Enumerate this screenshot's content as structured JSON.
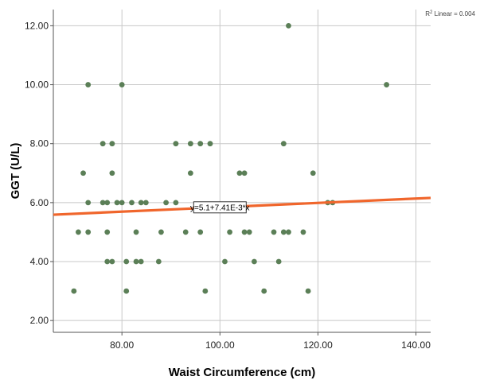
{
  "chart_data": {
    "type": "scatter",
    "xlabel": "Waist Circumference (cm)",
    "ylabel": "GGT (U/L)",
    "xlim": [
      66,
      143
    ],
    "ylim": [
      1.6,
      12.55
    ],
    "xticks": [
      80,
      100,
      120,
      140
    ],
    "xtick_labels": [
      "80.00",
      "100.00",
      "120.00",
      "140.00"
    ],
    "yticks": [
      2,
      4,
      6,
      8,
      10,
      12
    ],
    "ytick_labels": [
      "2.00",
      "4.00",
      "6.00",
      "8.00",
      "10.00",
      "12.00"
    ],
    "grid": true,
    "points": [
      {
        "x": 70.2,
        "y": 3
      },
      {
        "x": 71.1,
        "y": 5
      },
      {
        "x": 72.1,
        "y": 7
      },
      {
        "x": 73.1,
        "y": 10
      },
      {
        "x": 73.1,
        "y": 6
      },
      {
        "x": 73.1,
        "y": 5
      },
      {
        "x": 76.1,
        "y": 8
      },
      {
        "x": 76.1,
        "y": 6
      },
      {
        "x": 77.0,
        "y": 6
      },
      {
        "x": 77.0,
        "y": 5
      },
      {
        "x": 77.0,
        "y": 4
      },
      {
        "x": 78.0,
        "y": 8
      },
      {
        "x": 78.0,
        "y": 7
      },
      {
        "x": 78.0,
        "y": 4
      },
      {
        "x": 79.0,
        "y": 6
      },
      {
        "x": 80.0,
        "y": 10
      },
      {
        "x": 80.0,
        "y": 6
      },
      {
        "x": 80.9,
        "y": 4
      },
      {
        "x": 80.9,
        "y": 3
      },
      {
        "x": 82.0,
        "y": 6
      },
      {
        "x": 82.9,
        "y": 5
      },
      {
        "x": 82.9,
        "y": 4
      },
      {
        "x": 83.9,
        "y": 6
      },
      {
        "x": 83.9,
        "y": 4
      },
      {
        "x": 84.9,
        "y": 6
      },
      {
        "x": 87.5,
        "y": 4
      },
      {
        "x": 88.0,
        "y": 5
      },
      {
        "x": 89.0,
        "y": 6
      },
      {
        "x": 91.0,
        "y": 8
      },
      {
        "x": 91.0,
        "y": 6
      },
      {
        "x": 93.0,
        "y": 5
      },
      {
        "x": 94.0,
        "y": 8
      },
      {
        "x": 94.0,
        "y": 7
      },
      {
        "x": 96.0,
        "y": 8
      },
      {
        "x": 96.0,
        "y": 5
      },
      {
        "x": 97.0,
        "y": 3
      },
      {
        "x": 98.0,
        "y": 8
      },
      {
        "x": 101.0,
        "y": 4
      },
      {
        "x": 102.0,
        "y": 5
      },
      {
        "x": 104.0,
        "y": 7
      },
      {
        "x": 105.0,
        "y": 7
      },
      {
        "x": 105.0,
        "y": 5
      },
      {
        "x": 106.0,
        "y": 5
      },
      {
        "x": 107.0,
        "y": 4
      },
      {
        "x": 109.0,
        "y": 3
      },
      {
        "x": 111.0,
        "y": 5
      },
      {
        "x": 112.0,
        "y": 4
      },
      {
        "x": 113.0,
        "y": 8
      },
      {
        "x": 113.0,
        "y": 5
      },
      {
        "x": 114.0,
        "y": 12
      },
      {
        "x": 114.0,
        "y": 5
      },
      {
        "x": 117.0,
        "y": 5
      },
      {
        "x": 118.0,
        "y": 3
      },
      {
        "x": 119.0,
        "y": 7
      },
      {
        "x": 122.0,
        "y": 6
      },
      {
        "x": 123.0,
        "y": 6
      },
      {
        "x": 134.0,
        "y": 10
      }
    ],
    "fit_line": {
      "intercept": 5.1,
      "slope": 0.00741,
      "x_start": 66,
      "x_end": 143,
      "y_start": 5.59,
      "y_end": 6.16
    },
    "equation_label": "y=5.1+7.41E-3*x",
    "equation_anchor": {
      "x": 100,
      "y": 5.84
    },
    "r2_label_base": "R",
    "r2_label_sup": "2",
    "r2_label_rest": " Linear = 0.004",
    "colors": {
      "point": "#5b7f57",
      "fit_line": "#f0662c",
      "grid": "#c8c8c8",
      "axis": "#555555"
    }
  }
}
